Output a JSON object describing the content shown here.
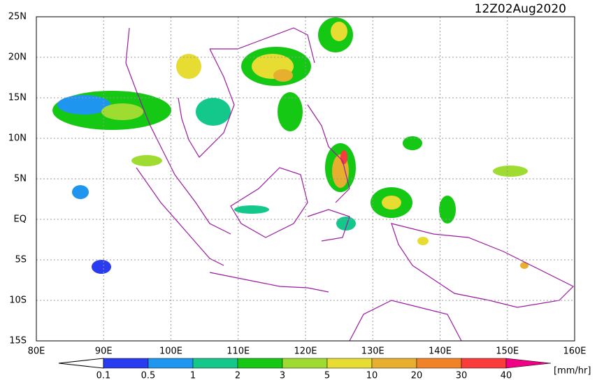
{
  "title": "12Z02Aug2020",
  "x_axis": {
    "labels": [
      "80E",
      "90E",
      "100E",
      "110E",
      "120E",
      "130E",
      "140E",
      "150E",
      "160E"
    ]
  },
  "y_axis": {
    "labels": [
      "25N",
      "20N",
      "15N",
      "10N",
      "5N",
      "EQ",
      "5S",
      "10S",
      "15S"
    ]
  },
  "colorbar": {
    "labels": [
      "0.1",
      "0.5",
      "1",
      "2",
      "3",
      "5",
      "10",
      "20",
      "30",
      "40"
    ],
    "colors": [
      "#2a3cf0",
      "#1e96f0",
      "#14c88c",
      "#14c814",
      "#9edc32",
      "#e6dc32",
      "#e6af2d",
      "#f08228",
      "#fa3c3c",
      "#f00082"
    ],
    "units": "[mm/hr]"
  }
}
